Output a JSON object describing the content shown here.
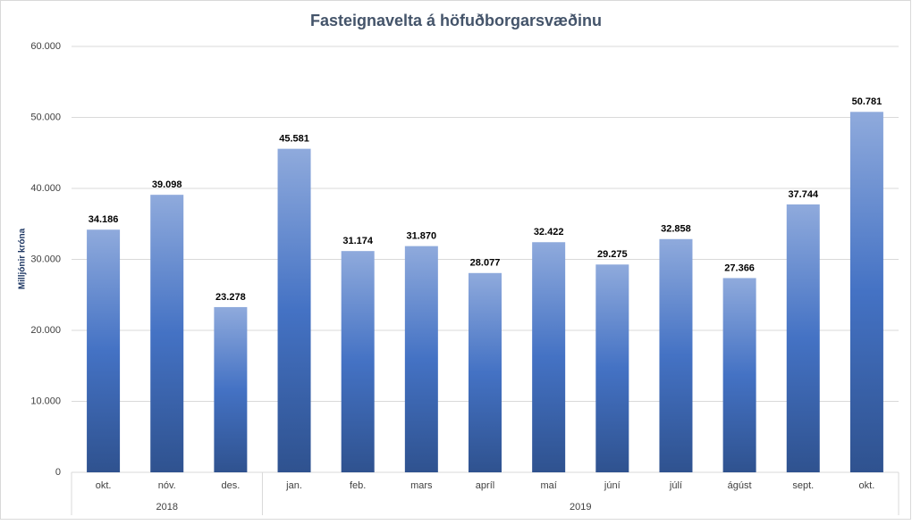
{
  "chart_data": {
    "type": "bar",
    "title": "Fasteignavelta á höfuðborgarsvæðinu",
    "y_label": "Milljónir króna",
    "categories": [
      "okt.",
      "nóv.",
      "des.",
      "jan.",
      "feb.",
      "mars",
      "apríl",
      "maí",
      "júní",
      "júlí",
      "ágúst",
      "sept.",
      "okt."
    ],
    "x_groups": [
      "2018",
      "2018",
      "2018",
      "2019",
      "2019",
      "2019",
      "2019",
      "2019",
      "2019",
      "2019",
      "2019",
      "2019",
      "2019"
    ],
    "values": [
      34186,
      39098,
      23278,
      45581,
      31174,
      31870,
      28077,
      32422,
      29275,
      32858,
      27366,
      37744,
      50781
    ],
    "value_labels": [
      "34.186",
      "39.098",
      "23.278",
      "45.581",
      "31.174",
      "31.870",
      "28.077",
      "32.422",
      "29.275",
      "32.858",
      "27.366",
      "37.744",
      "50.781"
    ],
    "gradient": [
      "#8faadc",
      "#4472c4",
      "#2f528f"
    ],
    "ylim": [
      0,
      60000
    ],
    "yticks": [
      0,
      {
        "value": 10000,
        "label": "10.000"
      },
      {
        "value": 20000,
        "label": "20.000"
      },
      {
        "value": 30000,
        "label": "30.000"
      },
      {
        "value": 40000,
        "label": "40.000"
      },
      {
        "value": 50000,
        "label": "50.000"
      },
      {
        "value": 60000,
        "label": "60.000"
      }
    ],
    "grid": true
  }
}
